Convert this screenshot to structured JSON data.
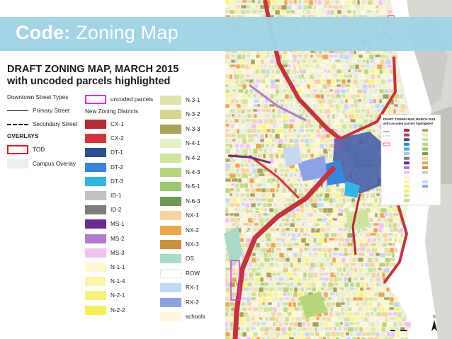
{
  "banner": {
    "bold": "Code:",
    "light": "Zoning Map"
  },
  "legend": {
    "title_line1": "DRAFT ZONING MAP, MARCH 2015",
    "title_line2": "with uncoded parcels highlighted",
    "street_types_header": "Downtown Street Types",
    "primary_street": "Primary Street",
    "secondary_street": "Secondary Street",
    "overlays_header": "OVERLAYS",
    "tod": "TOD",
    "campus_overlay": "Campus Overlay",
    "uncoded_parcels": "uncoded parcels",
    "districts_header": "New Zoning Districts",
    "col2": [
      {
        "label": "CX-1",
        "color": "#b52a35"
      },
      {
        "label": "CX-2",
        "color": "#d6333d"
      },
      {
        "label": "DT-1",
        "color": "#2c4f98"
      },
      {
        "label": "DT-2",
        "color": "#3686e0"
      },
      {
        "label": "DT-3",
        "color": "#2eb8e8"
      },
      {
        "label": "ID-1",
        "color": "#c2c2c2"
      },
      {
        "label": "ID-2",
        "color": "#7c7c7c"
      },
      {
        "label": "MS-1",
        "color": "#6b2c91"
      },
      {
        "label": "MS-2",
        "color": "#b27ad0"
      },
      {
        "label": "MS-3",
        "color": "#eec3f2"
      },
      {
        "label": "N-1-1",
        "color": "#fdf7cd"
      },
      {
        "label": "N-1-4",
        "color": "#fbf5a6"
      },
      {
        "label": "N-2-1",
        "color": "#fbf27a"
      },
      {
        "label": "N-2-2",
        "color": "#f7ef58"
      }
    ],
    "col3": [
      {
        "label": "N-3-1",
        "color": "#e3e4ad"
      },
      {
        "label": "N-3-2",
        "color": "#d6d688"
      },
      {
        "label": "N-3-3",
        "color": "#a9a255"
      },
      {
        "label": "N-4-1",
        "color": "#e4efc4"
      },
      {
        "label": "N-4-2",
        "color": "#cfe49c"
      },
      {
        "label": "N-4-3",
        "color": "#b6d67c"
      },
      {
        "label": "N-5-1",
        "color": "#9cc86e"
      },
      {
        "label": "N-6-3",
        "color": "#6f9a54"
      },
      {
        "label": "NX-1",
        "color": "#f7d3a0"
      },
      {
        "label": "NX-2",
        "color": "#eda64a"
      },
      {
        "label": "NX-3",
        "color": "#cd8f3c"
      },
      {
        "label": "OS",
        "color": "#a9dbc9"
      },
      {
        "label": "ROW",
        "color": "#ffffff"
      },
      {
        "label": "RX-1",
        "color": "#c4d8f4"
      },
      {
        "label": "RX-2",
        "color": "#8aa3e8"
      },
      {
        "label": "schools",
        "color": "#fdf6dc"
      }
    ]
  },
  "map": {
    "inset_title_line1": "DRAFT ZONING MAP, MARCH 2015",
    "inset_title_line2": "with uncoded parcels highlighted",
    "north_label": "N",
    "colors": {
      "river": "#ffffff",
      "land": "#efeede",
      "industrial": "#cfcfcf",
      "highway": "#c8323b",
      "downtown": "#3b57a6",
      "open_space": "#a9dbc9"
    }
  }
}
